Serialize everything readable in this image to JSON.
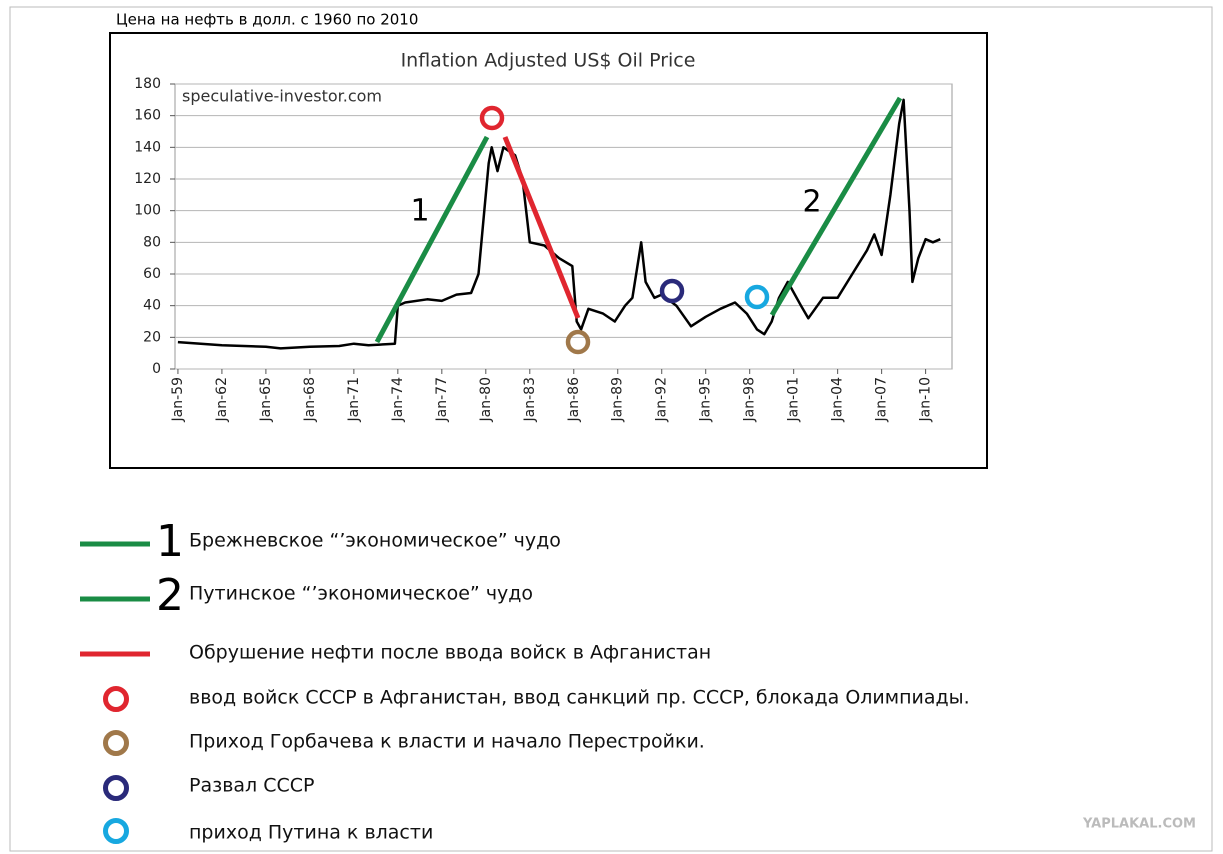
{
  "page_title": "Цена на нефть в долл. с 1960 по 2010",
  "chart_data": {
    "type": "line",
    "title": "Inflation Adjusted US$ Oil Price",
    "source": "speculative-investor.com",
    "color": "#000000",
    "grid": true,
    "x": [
      1959,
      1962,
      1965,
      1966,
      1968,
      1970,
      1971,
      1972,
      1973.8,
      1974.0,
      1974.5,
      1976,
      1977,
      1978,
      1979,
      1979.5,
      1979.9,
      1980.2,
      1980.4,
      1980.8,
      1981.2,
      1982,
      1982.5,
      1983,
      1984,
      1985,
      1985.9,
      1986.2,
      1986.5,
      1987,
      1988,
      1988.8,
      1989.5,
      1990,
      1990.6,
      1990.9,
      1991.5,
      1992,
      1993,
      1994,
      1995,
      1996,
      1997,
      1997.8,
      1998.5,
      1999.0,
      1999.5,
      2000,
      2000.6,
      2001.5,
      2002,
      2003,
      2004,
      2005,
      2006,
      2006.5,
      2007,
      2007.6,
      2008.2,
      2008.5,
      2008.9,
      2009.1,
      2009.5,
      2010,
      2010.5,
      2011
    ],
    "values": [
      17,
      15,
      14,
      13,
      14,
      14.5,
      16,
      15,
      16,
      40,
      42,
      44,
      43,
      47,
      48,
      60,
      100,
      130,
      140,
      125,
      140,
      135,
      120,
      80,
      78,
      70,
      65,
      30,
      25,
      38,
      35,
      30,
      40,
      45,
      80,
      55,
      45,
      47,
      40,
      27,
      33,
      38,
      42,
      35,
      25,
      22,
      30,
      45,
      55,
      40,
      32,
      45,
      45,
      60,
      75,
      85,
      72,
      110,
      155,
      170,
      100,
      55,
      70,
      82,
      80,
      82
    ],
    "xlim": [
      1958.8,
      2011.8
    ],
    "xticks": [
      {
        "value": 1959,
        "label": "Jan-59"
      },
      {
        "value": 1962,
        "label": "Jan-62"
      },
      {
        "value": 1965,
        "label": "Jan-65"
      },
      {
        "value": 1968,
        "label": "Jan-68"
      },
      {
        "value": 1971,
        "label": "Jan-71"
      },
      {
        "value": 1974,
        "label": "Jan-74"
      },
      {
        "value": 1977,
        "label": "Jan-77"
      },
      {
        "value": 1980,
        "label": "Jan-80"
      },
      {
        "value": 1983,
        "label": "Jan-83"
      },
      {
        "value": 1986,
        "label": "Jan-86"
      },
      {
        "value": 1989,
        "label": "Jan-89"
      },
      {
        "value": 1992,
        "label": "Jan-92"
      },
      {
        "value": 1995,
        "label": "Jan-95"
      },
      {
        "value": 1998,
        "label": "Jan-98"
      },
      {
        "value": 2001,
        "label": "Jan-01"
      },
      {
        "value": 2004,
        "label": "Jan-04"
      },
      {
        "value": 2007,
        "label": "Jan-07"
      },
      {
        "value": 2010,
        "label": "Jan-10"
      }
    ],
    "ylim": [
      0,
      180
    ],
    "yticks": [
      0,
      20,
      40,
      60,
      80,
      100,
      120,
      140,
      160,
      180
    ],
    "annotations": [
      "1",
      "2"
    ]
  },
  "legend": [
    {
      "number": "1",
      "text": "Брежневское “’экономическое” чудо"
    },
    {
      "number": "2",
      "text": "Путинское “’экономическое” чудо"
    },
    {
      "text": "Обрушение нефти после ввода войск в Афганистан"
    },
    {
      "text": "ввод войск СССР в Афганистан, ввод санкций пр. СССР, блокада Олимпиады."
    },
    {
      "text": "Приход Горбачева к власти и начало Перестройки."
    },
    {
      "text": "Развал СССР"
    },
    {
      "text": "приход Путина к власти"
    }
  ],
  "watermark": "YAPLAKAL.COM"
}
